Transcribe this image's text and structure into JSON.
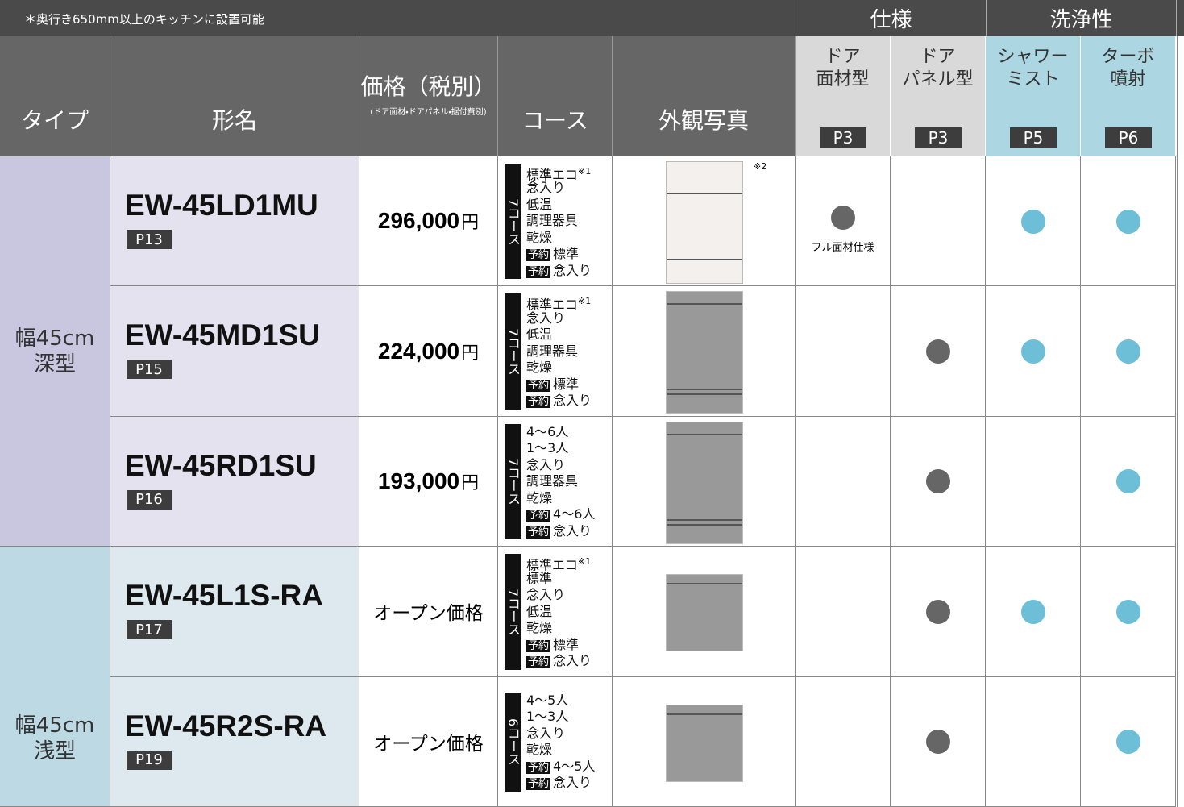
{
  "note": "＊奥行き650mm以上のキッチンに設置可能",
  "header_groups": [
    "仕様",
    "洗浄性"
  ],
  "header": {
    "type": "タイプ",
    "model": "形名",
    "price": "価格（税別）",
    "price_note": "(ドア面材・ドアパネル・据付費別)",
    "course": "コース",
    "photo": "外観写真"
  },
  "features": [
    {
      "label": "ドア\n面材型",
      "page": "P3"
    },
    {
      "label": "ドア\nパネル型",
      "page": "P3"
    },
    {
      "label": "シャワー\nミスト",
      "page": "P5"
    },
    {
      "label": "ターボ\n噴射",
      "page": "P6"
    }
  ],
  "groups": [
    {
      "type": "幅45cm\n深型",
      "rows": [
        {
          "model": "EW-45LD1MU",
          "page": "P13",
          "price": "296,000",
          "price_unit": "円",
          "course_count": "7コース",
          "courses": [
            {
              "text": "標準エコ",
              "note": "※1"
            },
            {
              "text": "念入り"
            },
            {
              "text": "低温"
            },
            {
              "text": "調理器具"
            },
            {
              "text": "乾燥"
            },
            {
              "badge": "予約",
              "text": "標準"
            },
            {
              "badge": "予約",
              "text": "念入り"
            }
          ],
          "photo_note": "※2",
          "features": [
            true,
            false,
            true,
            true
          ],
          "feature_note": "フル面材仕様"
        },
        {
          "model": "EW-45MD1SU",
          "page": "P15",
          "price": "224,000",
          "price_unit": "円",
          "course_count": "7コース",
          "courses": [
            {
              "text": "標準エコ",
              "note": "※1"
            },
            {
              "text": "念入り"
            },
            {
              "text": "低温"
            },
            {
              "text": "調理器具"
            },
            {
              "text": "乾燥"
            },
            {
              "badge": "予約",
              "text": "標準"
            },
            {
              "badge": "予約",
              "text": "念入り"
            }
          ],
          "features": [
            false,
            true,
            true,
            true
          ]
        },
        {
          "model": "EW-45RD1SU",
          "page": "P16",
          "price": "193,000",
          "price_unit": "円",
          "course_count": "7コース",
          "courses": [
            {
              "text": "4〜6人"
            },
            {
              "text": "1〜3人"
            },
            {
              "text": "念入り"
            },
            {
              "text": "調理器具"
            },
            {
              "text": "乾燥"
            },
            {
              "badge": "予約",
              "text": "4〜6人"
            },
            {
              "badge": "予約",
              "text": "念入り"
            }
          ],
          "features": [
            false,
            true,
            false,
            true
          ]
        }
      ]
    },
    {
      "type": "幅45cm\n浅型",
      "rows": [
        {
          "model": "EW-45L1S-RA",
          "page": "P17",
          "price": "オープン価格",
          "course_count": "7コース",
          "courses": [
            {
              "text": "標準エコ",
              "note": "※1"
            },
            {
              "text": "標準"
            },
            {
              "text": "念入り"
            },
            {
              "text": "低温"
            },
            {
              "text": "乾燥"
            },
            {
              "badge": "予約",
              "text": "標準"
            },
            {
              "badge": "予約",
              "text": "念入り"
            }
          ],
          "features": [
            false,
            true,
            true,
            true
          ]
        },
        {
          "model": "EW-45R2S-RA",
          "page": "P19",
          "price": "オープン価格",
          "course_count": "6コース",
          "courses": [
            {
              "text": "4〜5人"
            },
            {
              "text": "1〜3人"
            },
            {
              "text": "念入り"
            },
            {
              "text": "乾燥"
            },
            {
              "badge": "予約",
              "text": "4〜5人"
            },
            {
              "badge": "予約",
              "text": "念入り"
            }
          ],
          "features": [
            false,
            true,
            false,
            true
          ]
        }
      ]
    }
  ]
}
